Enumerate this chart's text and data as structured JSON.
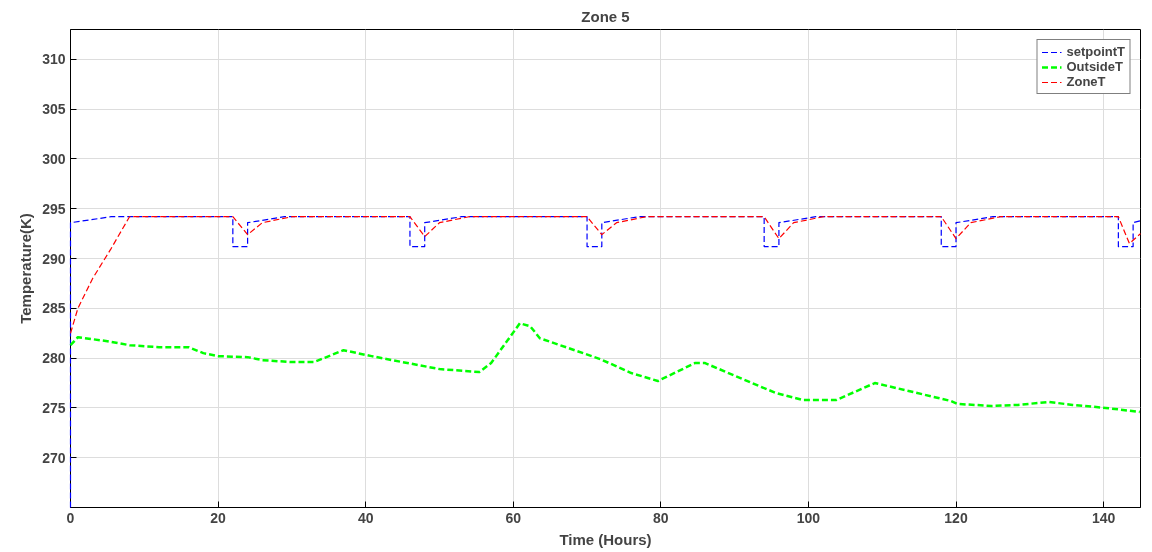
{
  "chart_data": {
    "type": "line",
    "title": "Zone 5",
    "xlabel": "Time (Hours)",
    "ylabel": "Temperature(K)",
    "xlim": [
      0,
      145
    ],
    "ylim": [
      265,
      313
    ],
    "xticks": [
      0,
      20,
      40,
      60,
      80,
      100,
      120,
      140
    ],
    "yticks": [
      270,
      275,
      280,
      285,
      290,
      295,
      300,
      305,
      310
    ],
    "grid": true,
    "legend": "top right",
    "line_style": "dashed",
    "marker": "none",
    "series": [
      {
        "name": "setpointT",
        "color": "#0000ff",
        "x": [
          0,
          0,
          5.5,
          22,
          22,
          24,
          24,
          29,
          46,
          46,
          48,
          48,
          53,
          70,
          70,
          72,
          72,
          77,
          94,
          94,
          96,
          96,
          101,
          118,
          118,
          120,
          120,
          125,
          142,
          142,
          144,
          144,
          145
        ],
        "values": [
          265,
          293.6,
          294.2,
          294.2,
          291.2,
          291.2,
          293.6,
          294.2,
          294.2,
          291.2,
          291.2,
          293.6,
          294.2,
          294.2,
          291.2,
          291.2,
          293.6,
          294.2,
          294.2,
          291.2,
          291.2,
          293.6,
          294.2,
          294.2,
          291.2,
          291.2,
          293.6,
          294.2,
          294.2,
          291.2,
          291.2,
          293.6,
          293.8
        ]
      },
      {
        "name": "OutsideT",
        "color": "#00ff00",
        "x": [
          0,
          1,
          5,
          8,
          12,
          16,
          18,
          20,
          24,
          26,
          30,
          33,
          37,
          40.8,
          45,
          50,
          55.4,
          57,
          60.9,
          62.3,
          63.6,
          71.8,
          76,
          79.6,
          84.6,
          86,
          93.3,
          95.6,
          99.2,
          103.8,
          109,
          119.3,
          120.2,
          124.8,
          128.4,
          132.6,
          135.8,
          140.3,
          144.9
        ],
        "values": [
          281.3,
          282.1,
          281.7,
          281.3,
          281.1,
          281.1,
          280.5,
          280.2,
          280.1,
          279.8,
          279.6,
          279.6,
          280.8,
          280.2,
          279.6,
          278.9,
          278.6,
          279.5,
          283.5,
          283.2,
          282,
          279.9,
          278.5,
          277.7,
          279.5,
          279.5,
          277.2,
          276.5,
          275.8,
          275.8,
          277.5,
          275.7,
          275.4,
          275.2,
          275.3,
          275.6,
          275.3,
          275,
          274.6
        ]
      },
      {
        "name": "ZoneT",
        "color": "#ff0000",
        "x": [
          0,
          1,
          3,
          5.5,
          8,
          22,
          24,
          26,
          30,
          46,
          48,
          50,
          54,
          70,
          72,
          74,
          78,
          94,
          96,
          98,
          102,
          118,
          120,
          122,
          126,
          142,
          143.5,
          145
        ],
        "values": [
          282.5,
          285,
          288,
          291,
          294.2,
          294.2,
          292.4,
          293.6,
          294.2,
          294.2,
          292.2,
          293.6,
          294.2,
          294.2,
          292.4,
          293.6,
          294.2,
          294.2,
          292,
          293.6,
          294.2,
          294.2,
          292,
          293.6,
          294.2,
          294.2,
          291.5,
          292.5
        ]
      }
    ]
  }
}
